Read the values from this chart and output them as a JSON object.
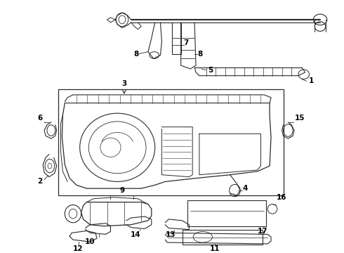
{
  "bg_color": "#ffffff",
  "line_color": "#2a2a2a",
  "label_color": "#000000",
  "fig_width": 4.9,
  "fig_height": 3.6,
  "dpi": 100,
  "label_fontsize": 7.5,
  "label_fontweight": "bold"
}
